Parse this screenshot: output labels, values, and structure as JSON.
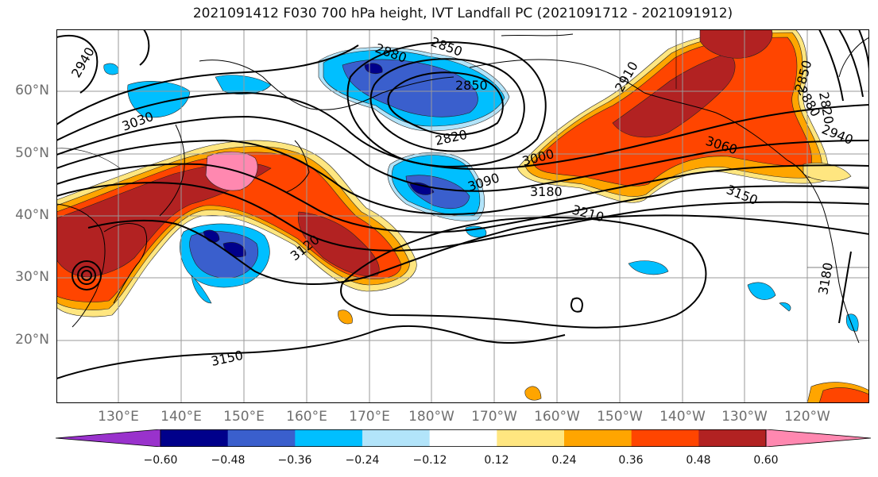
{
  "title": "2021091412 F030 700 hPa height, IVT Landfall PC (2021091712 - 2021091912)",
  "lat_labels": [
    "60°N",
    "50°N",
    "40°N",
    "30°N",
    "20°N"
  ],
  "lon_labels": [
    "130°E",
    "140°E",
    "150°E",
    "160°E",
    "170°E",
    "180°W",
    "170°W",
    "160°W",
    "150°W",
    "140°W",
    "130°W",
    "120°W"
  ],
  "contour_labels": [
    "2940",
    "3030",
    "2880",
    "2850",
    "2850",
    "2820",
    "3000",
    "3090",
    "3180",
    "3210",
    "3120",
    "3150",
    "3150",
    "2910",
    "2850",
    "2820",
    "2880",
    "2940",
    "3060",
    "3180"
  ],
  "colorbar": {
    "tick_labels": [
      "−0.60",
      "−0.48",
      "−0.36",
      "−0.24",
      "−0.12",
      "0.12",
      "0.24",
      "0.36",
      "0.48",
      "0.60"
    ],
    "colors": [
      "#9932cc",
      "#00008b",
      "#3a5fcd",
      "#00bfff",
      "#b2e4fa",
      "#ffffff",
      "#ffe680",
      "#ffa500",
      "#ff4500",
      "#b22222",
      "#ff88b0"
    ]
  }
}
